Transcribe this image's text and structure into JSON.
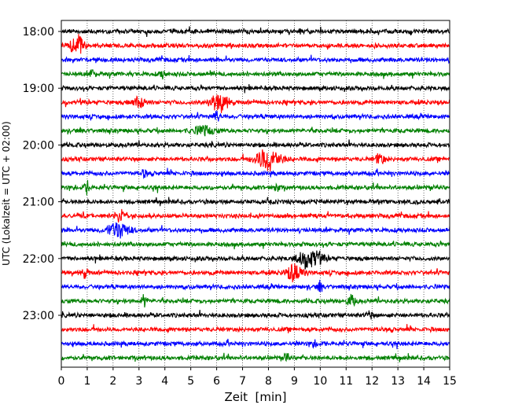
{
  "chart_data": {
    "type": "line",
    "title": "",
    "xlabel": "Zeit  [min]",
    "ylabel": "UTC (Lokalzeit = UTC + 02:00)",
    "xlim": [
      0,
      15
    ],
    "xticks": [
      "0",
      "1",
      "2",
      "3",
      "4",
      "5",
      "6",
      "7",
      "8",
      "9",
      "10",
      "11",
      "12",
      "13",
      "14",
      "15"
    ],
    "yticks": [
      {
        "label": "18:00",
        "row": 0
      },
      {
        "label": "19:00",
        "row": 4
      },
      {
        "label": "20:00",
        "row": 8
      },
      {
        "label": "21:00",
        "row": 12
      },
      {
        "label": "22:00",
        "row": 16
      },
      {
        "label": "23:00",
        "row": 20
      }
    ],
    "grid": "vertical dotted at each minute",
    "rows": 24,
    "row_interval_min": 15,
    "start_time": "18:00",
    "colors": [
      "#000000",
      "#ff0000",
      "#0000ff",
      "#008000"
    ],
    "base_amplitude": 0.22,
    "events": [
      {
        "row": 1,
        "minute": 0.6,
        "amp": 1.2,
        "width": 0.25
      },
      {
        "row": 3,
        "minute": 1.2,
        "amp": 0.5,
        "width": 0.1
      },
      {
        "row": 3,
        "minute": 3.9,
        "amp": 0.5,
        "width": 0.1
      },
      {
        "row": 5,
        "minute": 3.0,
        "amp": 0.6,
        "width": 0.25
      },
      {
        "row": 5,
        "minute": 6.1,
        "amp": 0.9,
        "width": 0.4
      },
      {
        "row": 6,
        "minute": 6.0,
        "amp": 0.5,
        "width": 0.15
      },
      {
        "row": 7,
        "minute": 5.5,
        "amp": 0.45,
        "width": 0.4
      },
      {
        "row": 9,
        "minute": 8.0,
        "amp": 1.3,
        "width": 0.45
      },
      {
        "row": 9,
        "minute": 12.3,
        "amp": 0.7,
        "width": 0.15
      },
      {
        "row": 10,
        "minute": 3.2,
        "amp": 0.5,
        "width": 0.08
      },
      {
        "row": 11,
        "minute": 1.0,
        "amp": 0.7,
        "width": 0.1
      },
      {
        "row": 11,
        "minute": 8.3,
        "amp": 0.5,
        "width": 0.1
      },
      {
        "row": 13,
        "minute": 2.3,
        "amp": 0.6,
        "width": 0.25
      },
      {
        "row": 14,
        "minute": 2.2,
        "amp": 0.9,
        "width": 0.4
      },
      {
        "row": 16,
        "minute": 9.6,
        "amp": 1.0,
        "width": 0.45
      },
      {
        "row": 17,
        "minute": 0.9,
        "amp": 0.5,
        "width": 0.15
      },
      {
        "row": 17,
        "minute": 9.0,
        "amp": 1.0,
        "width": 0.3
      },
      {
        "row": 18,
        "minute": 10.0,
        "amp": 0.5,
        "width": 0.1
      },
      {
        "row": 19,
        "minute": 3.2,
        "amp": 0.7,
        "width": 0.1
      },
      {
        "row": 19,
        "minute": 11.2,
        "amp": 0.6,
        "width": 0.15
      },
      {
        "row": 20,
        "minute": 11.9,
        "amp": 0.5,
        "width": 0.1
      },
      {
        "row": 22,
        "minute": 9.8,
        "amp": 0.4,
        "width": 0.1
      },
      {
        "row": 23,
        "minute": 8.7,
        "amp": 0.6,
        "width": 0.08
      }
    ]
  }
}
